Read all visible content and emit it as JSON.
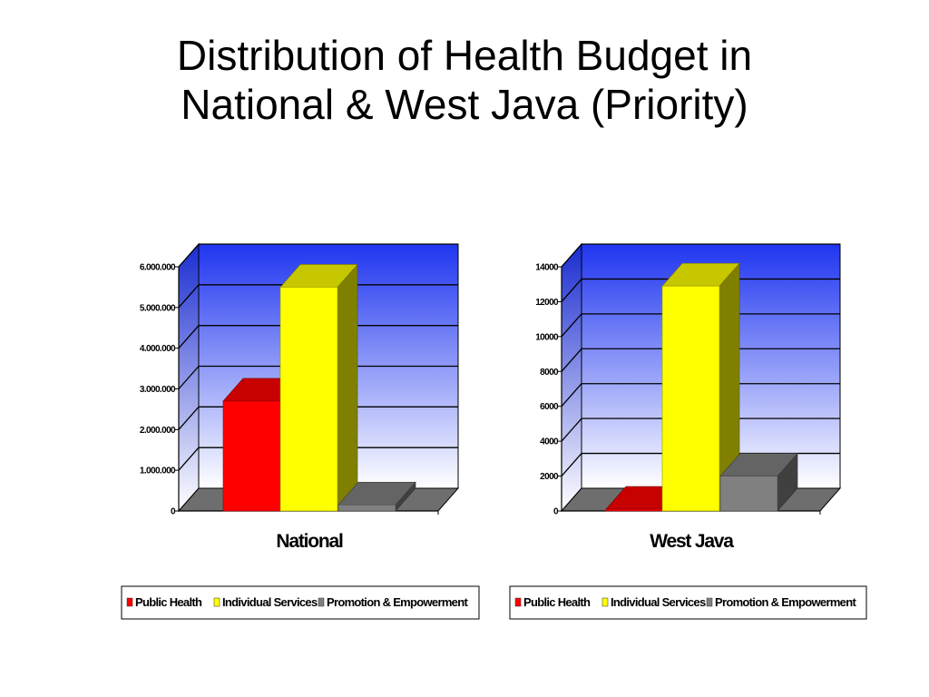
{
  "slide": {
    "title_line1": "Distribution of Health Budget in",
    "title_line2": "National & West Java (Priority)"
  },
  "colors": {
    "public_health": "#ff0000",
    "individual_services": "#ffff00",
    "promotion": "#808080",
    "wall_top": "#1f35f0",
    "wall_bottom": "#ffffff"
  },
  "chart_data": [
    {
      "type": "bar",
      "style": "3d-column",
      "categories": [
        "National"
      ],
      "series": [
        {
          "name": "Public Health",
          "values": [
            2700000
          ]
        },
        {
          "name": "Individual Services",
          "values": [
            5500000
          ]
        },
        {
          "name": "Promotion & Empowerment",
          "values": [
            150000
          ]
        }
      ],
      "yticks": [
        "0",
        "1.000.000",
        "2.000.000",
        "3.000.000",
        "4.000.000",
        "5.000.000",
        "6.000.000"
      ],
      "ylim": [
        0,
        6000000
      ],
      "legend_position": "bottom"
    },
    {
      "type": "bar",
      "style": "3d-column",
      "categories": [
        "West Java"
      ],
      "series": [
        {
          "name": "Public Health",
          "values": [
            100
          ]
        },
        {
          "name": "Individual Services",
          "values": [
            12900
          ]
        },
        {
          "name": "Promotion & Empowerment",
          "values": [
            2000
          ]
        }
      ],
      "yticks": [
        "0",
        "2000",
        "4000",
        "6000",
        "8000",
        "10000",
        "12000",
        "14000"
      ],
      "ylim": [
        0,
        14000
      ],
      "legend_position": "bottom"
    }
  ]
}
